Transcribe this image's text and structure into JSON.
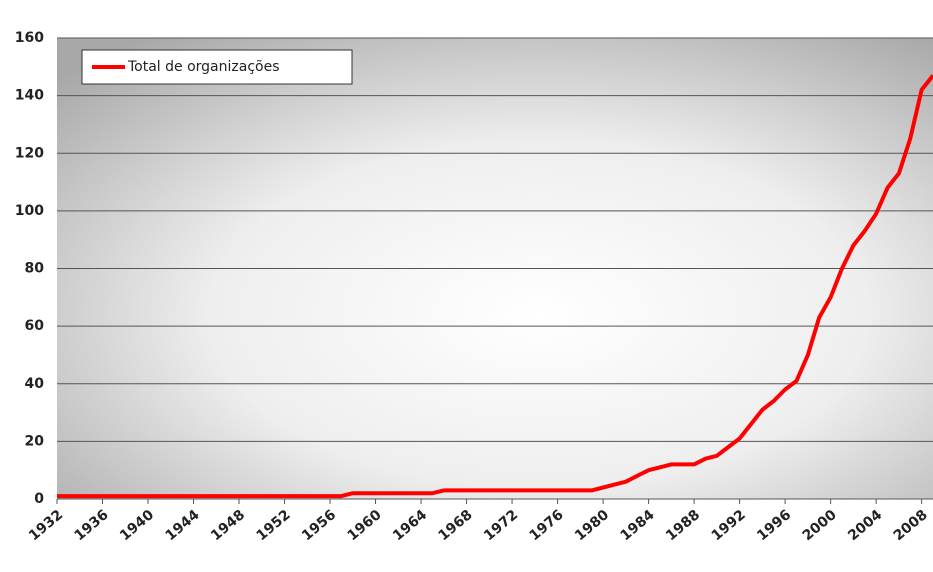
{
  "chart_data": {
    "type": "line",
    "x": [
      1932,
      1933,
      1934,
      1935,
      1936,
      1937,
      1938,
      1939,
      1940,
      1941,
      1942,
      1943,
      1944,
      1945,
      1946,
      1947,
      1948,
      1949,
      1950,
      1951,
      1952,
      1953,
      1954,
      1955,
      1956,
      1957,
      1958,
      1959,
      1960,
      1961,
      1962,
      1963,
      1964,
      1965,
      1966,
      1967,
      1968,
      1969,
      1970,
      1971,
      1972,
      1973,
      1974,
      1975,
      1976,
      1977,
      1978,
      1979,
      1980,
      1981,
      1982,
      1983,
      1984,
      1985,
      1986,
      1987,
      1988,
      1989,
      1990,
      1991,
      1992,
      1993,
      1994,
      1995,
      1996,
      1997,
      1998,
      1999,
      2000,
      2001,
      2002,
      2003,
      2004,
      2005,
      2006,
      2007,
      2008,
      2009
    ],
    "series": [
      {
        "name": "Total de organizações",
        "color": "#ff0000",
        "values": [
          1,
          1,
          1,
          1,
          1,
          1,
          1,
          1,
          1,
          1,
          1,
          1,
          1,
          1,
          1,
          1,
          1,
          1,
          1,
          1,
          1,
          1,
          1,
          1,
          1,
          1,
          2,
          2,
          2,
          2,
          2,
          2,
          2,
          2,
          3,
          3,
          3,
          3,
          3,
          3,
          3,
          3,
          3,
          3,
          3,
          3,
          3,
          3,
          4,
          5,
          6,
          8,
          10,
          11,
          12,
          12,
          12,
          14,
          15,
          18,
          21,
          26,
          31,
          34,
          38,
          41,
          50,
          63,
          70,
          80,
          88,
          93,
          99,
          108,
          113,
          125,
          142,
          147
        ]
      }
    ],
    "xlim": [
      1932,
      2009
    ],
    "xticks": [
      1932,
      1936,
      1940,
      1944,
      1948,
      1952,
      1956,
      1960,
      1964,
      1968,
      1972,
      1976,
      1980,
      1984,
      1988,
      1992,
      1996,
      2000,
      2004,
      2008
    ],
    "ylim": [
      0,
      160
    ],
    "yticks": [
      0,
      20,
      40,
      60,
      80,
      100,
      120,
      140,
      160
    ],
    "grid": true,
    "legend": "top-left"
  }
}
